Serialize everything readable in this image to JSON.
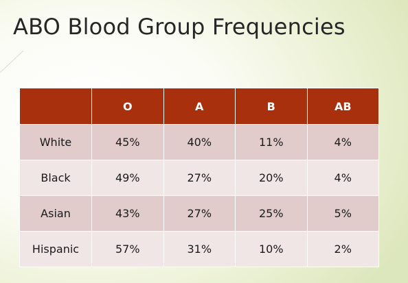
{
  "title": "ABO Blood Group Frequencies",
  "table": {
    "columns": [
      "",
      "O",
      "A",
      "B",
      "AB"
    ],
    "rows": [
      {
        "group": "White",
        "values": [
          "45%",
          "40%",
          "11%",
          "4%"
        ]
      },
      {
        "group": "Black",
        "values": [
          "49%",
          "27%",
          "20%",
          "4%"
        ]
      },
      {
        "group": "Asian",
        "values": [
          "43%",
          "27%",
          "25%",
          "5%"
        ]
      },
      {
        "group": "Hispanic",
        "values": [
          "57%",
          "31%",
          "10%",
          "2%"
        ]
      }
    ]
  },
  "colors": {
    "header_bg": "#a8300d",
    "row_odd": "#e2cbcb",
    "row_even": "#f0e6e6",
    "title_text": "#262626"
  }
}
